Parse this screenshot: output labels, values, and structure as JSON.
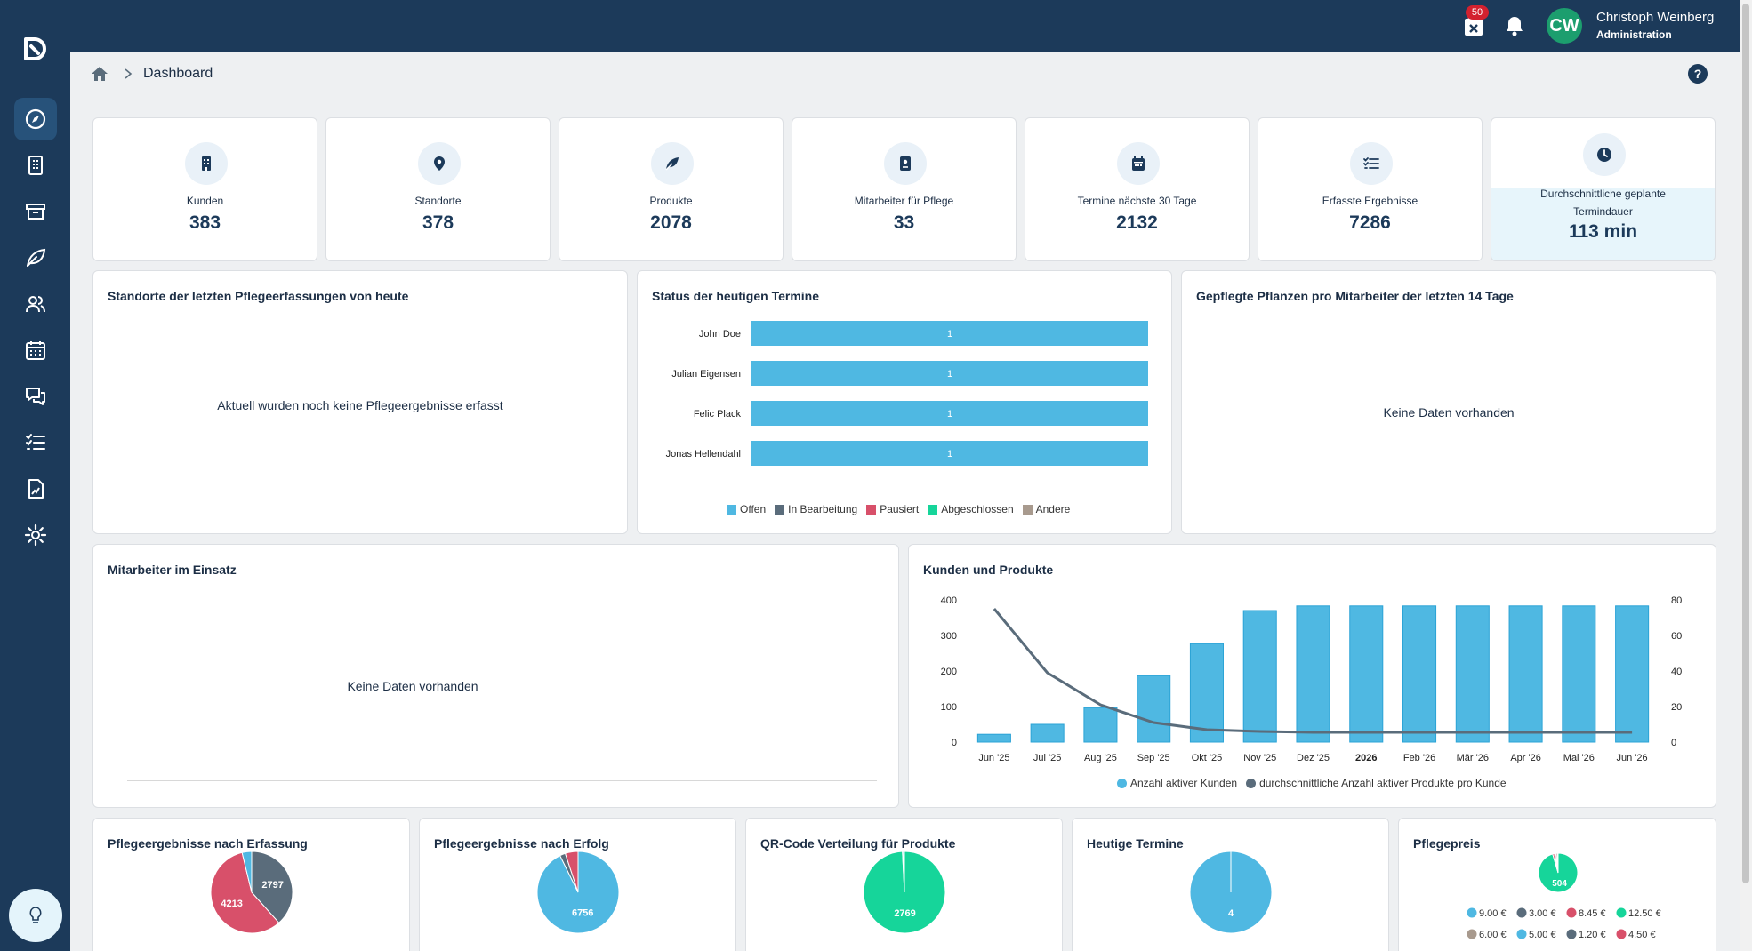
{
  "sidebar": {
    "items": [
      {
        "icon": "compass-icon",
        "active": true
      },
      {
        "icon": "building-icon",
        "active": false
      },
      {
        "icon": "archive-icon",
        "active": false
      },
      {
        "icon": "leaf-icon",
        "active": false
      },
      {
        "icon": "users-icon",
        "active": false
      },
      {
        "icon": "calendar-icon",
        "active": false
      },
      {
        "icon": "chat-icon",
        "active": false
      },
      {
        "icon": "checklist-icon",
        "active": false
      },
      {
        "icon": "report-icon",
        "active": false
      },
      {
        "icon": "gear-icon",
        "active": false
      }
    ],
    "help_icon": "lightbulb-icon"
  },
  "topbar": {
    "calendar_badge": "50",
    "user_initials": "CW",
    "user_name": "Christoph Weinberg",
    "user_role": "Administration"
  },
  "breadcrumb": {
    "title": "Dashboard",
    "help": "?"
  },
  "kpis": [
    {
      "label": "Kunden",
      "value": "383",
      "icon": "building-icon"
    },
    {
      "label": "Standorte",
      "value": "378",
      "icon": "map-pin-icon"
    },
    {
      "label": "Produkte",
      "value": "2078",
      "icon": "leaf-icon"
    },
    {
      "label": "Mitarbeiter für Pflege",
      "value": "33",
      "icon": "badge-icon"
    },
    {
      "label": "Termine nächste 30 Tage",
      "value": "2132",
      "icon": "calendar-icon"
    },
    {
      "label": "Erfasste Ergebnisse",
      "value": "7286",
      "icon": "checklist-icon"
    },
    {
      "label": "Durchschnittliche geplante Termindauer",
      "value": "113 min",
      "icon": "clock-icon"
    }
  ],
  "panels": {
    "standorte": {
      "title": "Standorte der letzten Pflegeerfassungen von heute",
      "empty": "Aktuell wurden noch keine Pflegeergebnisse erfasst"
    },
    "status": {
      "title": "Status der heutigen Termine"
    },
    "gepflegte": {
      "title": "Gepflegte Pflanzen pro Mitarbeiter der letzten 14 Tage",
      "empty": "Keine Daten vorhanden"
    },
    "mitarbeiter": {
      "title": "Mitarbeiter im Einsatz",
      "empty": "Keine Daten vorhanden"
    },
    "kunden": {
      "title": "Kunden und Produkte"
    },
    "erfassung": {
      "title": "Pflegeergebnisse nach Erfassung"
    },
    "erfolg": {
      "title": "Pflegeergebnisse nach Erfolg"
    },
    "qr": {
      "title": "QR-Code Verteilung für Produkte"
    },
    "heutige": {
      "title": "Heutige Termine"
    },
    "preis": {
      "title": "Pflegepreis"
    }
  },
  "chart_data": [
    {
      "type": "bar",
      "orientation": "horizontal",
      "stacked": true,
      "categories": [
        "John Doe",
        "Julian Eigensen",
        "Felic Plack",
        "Jonas Hellendahl"
      ],
      "series": [
        {
          "name": "Offen",
          "color": "#4fb8e2",
          "values": [
            1,
            1,
            1,
            1
          ]
        },
        {
          "name": "In Bearbeitung",
          "color": "#5a6c7b",
          "values": [
            0,
            0,
            0,
            0
          ]
        },
        {
          "name": "Pausiert",
          "color": "#d8506a",
          "values": [
            0,
            0,
            0,
            0
          ]
        },
        {
          "name": "Abgeschlossen",
          "color": "#16d59a",
          "values": [
            0,
            0,
            0,
            0
          ]
        },
        {
          "name": "Andere",
          "color": "#a89a8e",
          "values": [
            0,
            0,
            0,
            0
          ]
        }
      ],
      "legend": "bottom"
    },
    {
      "type": "bar",
      "combo": "bar+line",
      "categories": [
        "Jun '25",
        "Jul '25",
        "Aug '25",
        "Sep '25",
        "Okt '25",
        "Nov '25",
        "Dez '25",
        "2026",
        "Feb '26",
        "Mär '26",
        "Apr '26",
        "Mai '26",
        "Jun '26"
      ],
      "series": [
        {
          "name": "Anzahl aktiver Kunden",
          "type": "bar",
          "axis": "left",
          "color": "#4fb8e2",
          "values": [
            22,
            50,
            97,
            187,
            277,
            370,
            383,
            383,
            383,
            383,
            383,
            383,
            383
          ]
        },
        {
          "name": "durchschnittliche Anzahl aktiver Produkte pro Kunde",
          "type": "line",
          "axis": "right",
          "color": "#5a6c7b",
          "values": [
            75,
            39,
            21,
            11,
            7,
            6,
            5.5,
            5.5,
            5.5,
            5.5,
            5.5,
            5.5,
            5.5
          ]
        }
      ],
      "yticks_left": [
        "400",
        "300",
        "200",
        "100",
        "0"
      ],
      "yticks_right": [
        "80",
        "60",
        "40",
        "20",
        "0"
      ],
      "ylim_left": [
        0,
        400
      ],
      "ylim_right": [
        0,
        80
      ],
      "legend": "bottom"
    },
    {
      "type": "pie",
      "title": "Pflegeergebnisse nach Erfassung",
      "slices": [
        {
          "value": 2797,
          "color": "#5a6c7b",
          "label": "2797"
        },
        {
          "value": 4213,
          "color": "#d8506a",
          "label": "4213"
        },
        {
          "value": 276,
          "color": "#4fb8e2",
          "label": ""
        }
      ]
    },
    {
      "type": "pie",
      "title": "Pflegeergebnisse nach Erfolg",
      "slices": [
        {
          "value": 6756,
          "color": "#4fb8e2",
          "label": "6756"
        },
        {
          "value": 160,
          "color": "#5a6c7b",
          "label": ""
        },
        {
          "value": 370,
          "color": "#d8506a",
          "label": ""
        }
      ]
    },
    {
      "type": "pie",
      "title": "QR-Code Verteilung für Produkte",
      "slices": [
        {
          "value": 2769,
          "color": "#16d59a",
          "label": "2769"
        },
        {
          "value": 12,
          "color": "#4fb8e2",
          "label": ""
        },
        {
          "value": 10,
          "color": "#5a6c7b",
          "label": ""
        }
      ]
    },
    {
      "type": "pie",
      "title": "Heutige Termine",
      "slices": [
        {
          "value": 4,
          "color": "#4fb8e2",
          "label": "4"
        }
      ]
    },
    {
      "type": "pie",
      "title": "Pflegepreis",
      "slices": [
        {
          "value": 504,
          "color": "#16d59a",
          "label": "504"
        },
        {
          "value": 8,
          "color": "#d8506a",
          "label": ""
        },
        {
          "value": 6,
          "color": "#5a6c7b",
          "label": ""
        },
        {
          "value": 6,
          "color": "#a89a8e",
          "label": ""
        },
        {
          "value": 4,
          "color": "#4fb8e2",
          "label": ""
        }
      ],
      "legend": [
        {
          "label": "9.00 €",
          "color": "#4fb8e2"
        },
        {
          "label": "3.00 €",
          "color": "#5a6c7b"
        },
        {
          "label": "8.45 €",
          "color": "#d8506a"
        },
        {
          "label": "12.50 €",
          "color": "#16d59a"
        },
        {
          "label": "6.00 €",
          "color": "#a89a8e"
        },
        {
          "label": "5.00 €",
          "color": "#4fb8e2"
        },
        {
          "label": "1.20 €",
          "color": "#5a6c7b"
        },
        {
          "label": "4.50 €",
          "color": "#d8506a"
        }
      ]
    }
  ]
}
